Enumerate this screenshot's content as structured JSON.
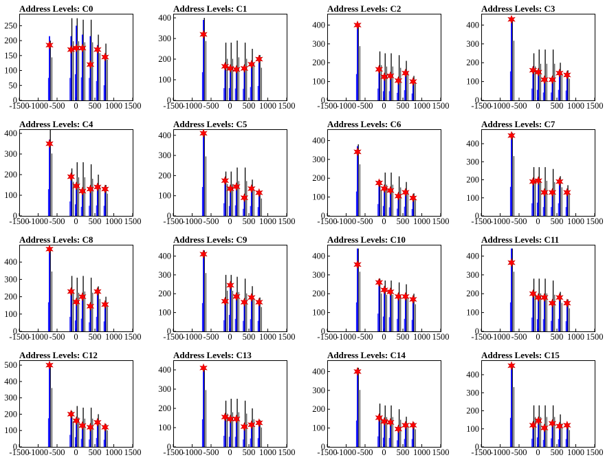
{
  "figure": {
    "x_ticks": [
      -1500,
      -1000,
      -500,
      0,
      500,
      1000,
      1500
    ],
    "x_range": [
      -1500,
      1500
    ],
    "colors": {
      "histogram_blue": "#0000ff",
      "histogram_black": "#000000",
      "peak_marker": "#ff0000",
      "background": "#ffffff"
    },
    "marker_icon": "red-star-marker"
  },
  "chart_data": [
    {
      "type": "histogram",
      "title": "Address Levels: C0",
      "ylim": [
        0,
        290
      ],
      "yticks": [
        0,
        50,
        100,
        150,
        200,
        250
      ],
      "peak_x": [
        -700,
        -130,
        10,
        170,
        380,
        570,
        770
      ],
      "black_heights": [
        200,
        275,
        275,
        270,
        270,
        220,
        190
      ],
      "blue_heights": [
        215,
        215,
        250,
        220,
        215,
        185,
        145
      ],
      "peaks": [
        185,
        170,
        175,
        175,
        120,
        170,
        145
      ]
    },
    {
      "type": "histogram",
      "title": "Address Levels: C1",
      "ylim": [
        0,
        420
      ],
      "yticks": [
        0,
        100,
        200,
        300,
        400
      ],
      "peak_x": [
        -700,
        -130,
        10,
        170,
        380,
        570,
        770
      ],
      "black_heights": [
        400,
        280,
        280,
        290,
        280,
        250,
        220
      ],
      "blue_heights": [
        390,
        170,
        170,
        165,
        160,
        185,
        200
      ],
      "peaks": [
        320,
        165,
        155,
        150,
        155,
        175,
        200
      ]
    },
    {
      "type": "histogram",
      "title": "Address Levels: C2",
      "ylim": [
        0,
        460
      ],
      "yticks": [
        0,
        100,
        200,
        300,
        400
      ],
      "peak_x": [
        -700,
        -130,
        10,
        170,
        380,
        570,
        770
      ],
      "black_heights": [
        400,
        260,
        250,
        250,
        240,
        210,
        130
      ],
      "blue_heights": [
        400,
        180,
        140,
        140,
        115,
        155,
        105
      ],
      "peaks": [
        400,
        165,
        125,
        130,
        105,
        145,
        100
      ]
    },
    {
      "type": "histogram",
      "title": "Address Levels: C3",
      "ylim": [
        0,
        460
      ],
      "yticks": [
        0,
        100,
        200,
        300,
        400
      ],
      "peak_x": [
        -700,
        -130,
        10,
        170,
        380,
        570,
        770
      ],
      "black_heights": [
        440,
        250,
        270,
        270,
        270,
        200,
        160
      ],
      "blue_heights": [
        440,
        180,
        160,
        120,
        120,
        160,
        150
      ],
      "peaks": [
        430,
        160,
        150,
        110,
        110,
        145,
        135
      ]
    },
    {
      "type": "histogram",
      "title": "Address Levels: C4",
      "ylim": [
        0,
        420
      ],
      "yticks": [
        0,
        100,
        200,
        300,
        400
      ],
      "peak_x": [
        -700,
        -130,
        10,
        170,
        380,
        570,
        770
      ],
      "black_heights": [
        420,
        230,
        260,
        260,
        250,
        200,
        150
      ],
      "blue_heights": [
        370,
        200,
        160,
        125,
        140,
        145,
        140
      ],
      "peaks": [
        350,
        190,
        145,
        120,
        130,
        140,
        130
      ]
    },
    {
      "type": "histogram",
      "title": "Address Levels: C5",
      "ylim": [
        0,
        430
      ],
      "yticks": [
        0,
        100,
        200,
        300,
        400
      ],
      "peak_x": [
        -700,
        -130,
        10,
        170,
        380,
        570,
        770
      ],
      "black_heights": [
        410,
        220,
        220,
        240,
        240,
        180,
        120
      ],
      "blue_heights": [
        410,
        180,
        140,
        150,
        100,
        140,
        125
      ],
      "peaks": [
        410,
        175,
        135,
        145,
        90,
        135,
        115
      ]
    },
    {
      "type": "histogram",
      "title": "Address Levels: C6",
      "ylim": [
        0,
        460
      ],
      "yticks": [
        0,
        100,
        200,
        300,
        400
      ],
      "peak_x": [
        -700,
        -130,
        10,
        170,
        380,
        570,
        770
      ],
      "black_heights": [
        380,
        190,
        230,
        230,
        210,
        180,
        120
      ],
      "blue_heights": [
        370,
        180,
        150,
        130,
        110,
        140,
        105
      ],
      "peaks": [
        340,
        175,
        145,
        135,
        105,
        125,
        95
      ]
    },
    {
      "type": "histogram",
      "title": "Address Levels: C7",
      "ylim": [
        0,
        480
      ],
      "yticks": [
        0,
        100,
        200,
        300,
        400
      ],
      "peak_x": [
        -700,
        -130,
        10,
        170,
        380,
        570,
        770
      ],
      "black_heights": [
        460,
        270,
        270,
        270,
        260,
        220,
        170
      ],
      "blue_heights": [
        460,
        200,
        210,
        140,
        140,
        200,
        140
      ],
      "peaks": [
        445,
        190,
        195,
        130,
        130,
        190,
        130
      ]
    },
    {
      "type": "histogram",
      "title": "Address Levels: C8",
      "ylim": [
        0,
        500
      ],
      "yticks": [
        0,
        100,
        200,
        300,
        400
      ],
      "peak_x": [
        -700,
        -130,
        10,
        170,
        380,
        570,
        770
      ],
      "black_heights": [
        480,
        320,
        310,
        320,
        310,
        260,
        200
      ],
      "blue_heights": [
        480,
        240,
        180,
        210,
        150,
        240,
        165
      ],
      "peaks": [
        475,
        230,
        170,
        200,
        145,
        230,
        155
      ]
    },
    {
      "type": "histogram",
      "title": "Address Levels: C9",
      "ylim": [
        0,
        460
      ],
      "yticks": [
        0,
        100,
        200,
        300,
        400
      ],
      "peak_x": [
        -700,
        -130,
        10,
        170,
        380,
        570,
        770
      ],
      "black_heights": [
        430,
        300,
        300,
        290,
        280,
        240,
        180
      ],
      "blue_heights": [
        430,
        170,
        250,
        190,
        160,
        185,
        160
      ],
      "peaks": [
        410,
        160,
        245,
        185,
        155,
        180,
        155
      ]
    },
    {
      "type": "histogram",
      "title": "Address Levels: C10",
      "ylim": [
        0,
        460
      ],
      "yticks": [
        0,
        100,
        200,
        300,
        400
      ],
      "peak_x": [
        -700,
        -130,
        10,
        170,
        380,
        570,
        770
      ],
      "black_heights": [
        440,
        280,
        270,
        270,
        260,
        250,
        200
      ],
      "blue_heights": [
        440,
        270,
        225,
        215,
        190,
        190,
        175
      ],
      "peaks": [
        355,
        260,
        220,
        210,
        185,
        185,
        170
      ]
    },
    {
      "type": "histogram",
      "title": "Address Levels: C11",
      "ylim": [
        0,
        460
      ],
      "yticks": [
        0,
        100,
        200,
        300,
        400
      ],
      "peak_x": [
        -700,
        -130,
        10,
        170,
        380,
        570,
        770
      ],
      "black_heights": [
        440,
        280,
        280,
        280,
        270,
        210,
        170
      ],
      "blue_heights": [
        440,
        210,
        185,
        185,
        160,
        190,
        155
      ],
      "peaks": [
        365,
        200,
        180,
        180,
        150,
        180,
        150
      ]
    },
    {
      "type": "histogram",
      "title": "Address Levels: C12",
      "ylim": [
        0,
        530
      ],
      "yticks": [
        0,
        100,
        200,
        300,
        400,
        500
      ],
      "peak_x": [
        -700,
        -130,
        10,
        170,
        380,
        570,
        770
      ],
      "black_heights": [
        500,
        220,
        250,
        240,
        240,
        200,
        140
      ],
      "blue_heights": [
        500,
        210,
        170,
        140,
        130,
        155,
        125
      ],
      "peaks": [
        500,
        200,
        160,
        130,
        120,
        150,
        120
      ]
    },
    {
      "type": "histogram",
      "title": "Address Levels: C13",
      "ylim": [
        0,
        450
      ],
      "yticks": [
        0,
        100,
        200,
        300,
        400
      ],
      "peak_x": [
        -700,
        -130,
        10,
        170,
        380,
        570,
        770
      ],
      "black_heights": [
        410,
        240,
        250,
        250,
        240,
        200,
        140
      ],
      "blue_heights": [
        410,
        165,
        150,
        150,
        110,
        125,
        130
      ],
      "peaks": [
        410,
        155,
        145,
        145,
        105,
        115,
        125
      ]
    },
    {
      "type": "histogram",
      "title": "Address Levels: C14",
      "ylim": [
        0,
        460
      ],
      "yticks": [
        0,
        100,
        200,
        300,
        400
      ],
      "peak_x": [
        -700,
        -130,
        10,
        170,
        380,
        570,
        770
      ],
      "black_heights": [
        420,
        230,
        220,
        220,
        200,
        160,
        130
      ],
      "blue_heights": [
        400,
        160,
        140,
        135,
        100,
        120,
        120
      ],
      "peaks": [
        400,
        155,
        135,
        130,
        95,
        115,
        115
      ]
    },
    {
      "type": "histogram",
      "title": "Address Levels: C15",
      "ylim": [
        0,
        480
      ],
      "yticks": [
        0,
        100,
        200,
        300,
        400
      ],
      "peak_x": [
        -700,
        -130,
        10,
        170,
        380,
        570,
        770
      ],
      "black_heights": [
        460,
        230,
        230,
        230,
        230,
        180,
        130
      ],
      "blue_heights": [
        460,
        130,
        150,
        110,
        135,
        120,
        125
      ],
      "peaks": [
        450,
        120,
        145,
        105,
        130,
        115,
        120
      ]
    }
  ]
}
